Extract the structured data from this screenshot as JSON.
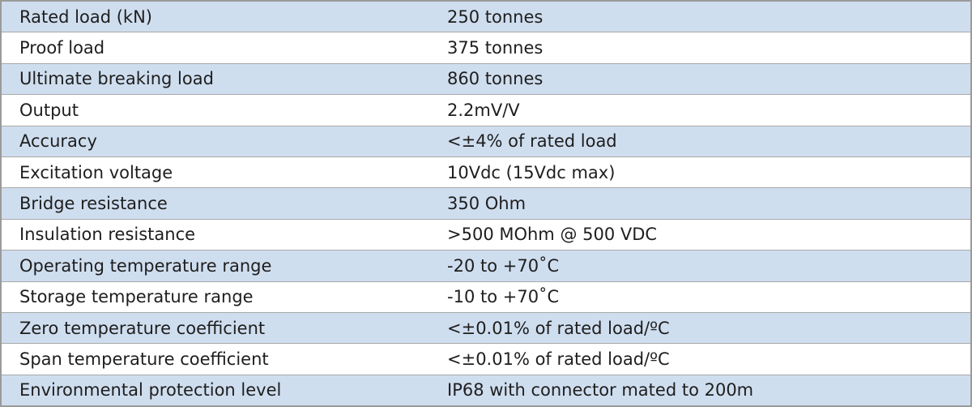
{
  "table": {
    "rows": [
      [
        "Rated load (kN)",
        "250 tonnes"
      ],
      [
        "Proof load",
        "375 tonnes"
      ],
      [
        "Ultimate breaking load",
        "860 tonnes"
      ],
      [
        "Output",
        "2.2mV/V"
      ],
      [
        "Accuracy",
        "<±4% of rated load"
      ],
      [
        "Excitation voltage",
        "10Vdc (15Vdc max)"
      ],
      [
        "Bridge resistance",
        "350 Ohm"
      ],
      [
        "Insulation resistance",
        ">500 MOhm @ 500 VDC"
      ],
      [
        "Operating temperature range",
        "-20 to +70˚C"
      ],
      [
        "Storage temperature range",
        "-10 to +70˚C"
      ],
      [
        "Zero temperature coefficient",
        "<±0.01% of rated load/ºC"
      ],
      [
        "Span temperature coefficient",
        "<±0.01% of rated load/ºC"
      ],
      [
        "Environmental protection level",
        "IP68 with connector mated to 200m"
      ]
    ]
  }
}
